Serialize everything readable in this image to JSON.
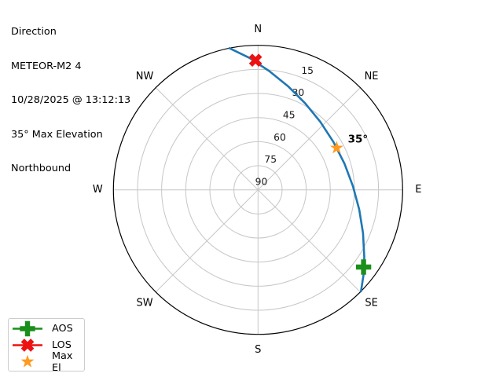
{
  "header": {
    "title": "Direction",
    "satellite": "METEOR-M2 4",
    "datetime": "10/28/2025 @ 13:12:13",
    "max_elevation": "35° Max Elevation",
    "direction": "Northbound"
  },
  "legend": {
    "items": [
      {
        "label": "AOS",
        "shape": "plus",
        "color": "#1a8f1a",
        "line": true
      },
      {
        "label": "LOS",
        "shape": "x",
        "color": "#ee1111",
        "line": true
      },
      {
        "label": "Max El",
        "shape": "star",
        "color": "#ff9a1f",
        "line": false
      }
    ]
  },
  "chart_data": {
    "type": "polar-skyplot",
    "title": "Direction",
    "compass_labels": [
      "N",
      "NE",
      "E",
      "SE",
      "S",
      "SW",
      "W",
      "NW"
    ],
    "elevation_ticks": [
      15,
      30,
      45,
      60,
      75,
      90
    ],
    "elevation_range": [
      0,
      90
    ],
    "r_label_angle_deg": 22.5,
    "grid_color": "#c6c6c6",
    "outline_color": "#000000",
    "track_color": "#1f77b4",
    "track_az_el": [
      [
        348.6,
        0
      ],
      [
        356.2,
        7.6
      ],
      [
        5.4,
        15.7
      ],
      [
        16.1,
        22.8
      ],
      [
        28.5,
        28.6
      ],
      [
        42.5,
        32.6
      ],
      [
        57.6,
        34.4
      ],
      [
        73.0,
        33.8
      ],
      [
        87.7,
        30.9
      ],
      [
        100.9,
        25.9
      ],
      [
        112.4,
        19.3
      ],
      [
        122.4,
        11.7
      ],
      [
        128.8,
        5.7
      ],
      [
        134.6,
        0
      ]
    ],
    "markers": [
      {
        "name": "AOS",
        "az": 126.2,
        "el": 8.6,
        "shape": "plus",
        "color": "#1a8f1a"
      },
      {
        "name": "LOS",
        "az": 358.9,
        "el": 9.3,
        "shape": "x",
        "color": "#ee1111"
      },
      {
        "name": "Max El",
        "az": 61.9,
        "el": 34.5,
        "shape": "star",
        "color": "#ff9a1f"
      }
    ],
    "annotation": {
      "text": "35°",
      "az": 61.9,
      "el": 34.5
    }
  }
}
